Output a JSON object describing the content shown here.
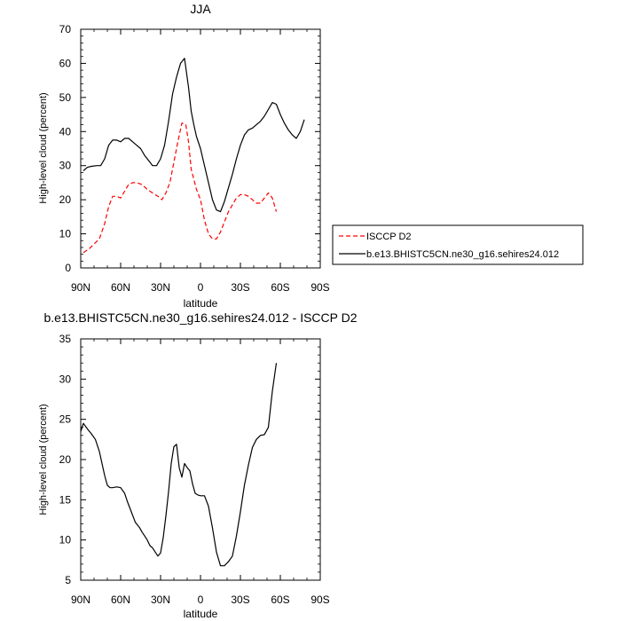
{
  "chart_data": [
    {
      "type": "line",
      "title": "JJA",
      "xlabel": "latitude",
      "ylabel": "High-level cloud (percent)",
      "xlim": [
        90,
        -90
      ],
      "ylim": [
        0,
        70
      ],
      "x_ticks": [
        90,
        60,
        30,
        0,
        -30,
        -60,
        -90
      ],
      "x_tick_labels": [
        "90N",
        "60N",
        "30N",
        "0",
        "30S",
        "60S",
        "90S"
      ],
      "y_ticks": [
        0,
        10,
        20,
        30,
        40,
        50,
        60,
        70
      ],
      "y_tick_labels": [
        "0",
        "10",
        "20",
        "30",
        "40",
        "50",
        "60",
        "70"
      ],
      "legend_position": "right",
      "series": [
        {
          "name": "ISCCP D2",
          "color": "#ff0000",
          "dash": "dashed",
          "x": [
            88,
            84,
            80,
            76,
            72,
            69,
            66,
            63,
            60,
            57,
            54,
            51,
            48,
            44,
            40,
            36,
            32,
            29,
            26,
            23,
            20,
            17,
            14,
            11,
            9,
            7,
            5,
            3,
            0,
            -3,
            -6,
            -9,
            -12,
            -15,
            -18,
            -21,
            -24,
            -27,
            -30,
            -33,
            -36,
            -39,
            -42,
            -45,
            -48,
            -51,
            -54,
            -57,
            -60,
            -63,
            -66
          ],
          "y": [
            4.5,
            5.5,
            7,
            8.5,
            13,
            18,
            21,
            21,
            20.5,
            22.5,
            24.5,
            25,
            25,
            24.5,
            23,
            22,
            21,
            20,
            22,
            25,
            31,
            37,
            42.5,
            42,
            37,
            29,
            26,
            23,
            20,
            14,
            10,
            8.5,
            8.5,
            10.5,
            13.5,
            16.5,
            18.5,
            20.5,
            21.5,
            21.5,
            21,
            20,
            19,
            19,
            20.5,
            22,
            20.5,
            16.5,
            null,
            null,
            null
          ]
        },
        {
          "name": "b.e13.BHISTC5CN.ne30_g16.sehires24.012",
          "color": "#000000",
          "dash": "solid",
          "x": [
            88,
            85,
            82,
            78,
            75,
            72,
            69,
            66,
            63,
            60,
            57,
            54,
            51,
            48,
            45,
            42,
            39,
            36,
            33,
            30,
            27,
            24,
            21,
            18,
            15,
            12,
            9,
            7,
            5,
            3,
            0,
            -3,
            -6,
            -9,
            -12,
            -15,
            -18,
            -21,
            -24,
            -27,
            -30,
            -33,
            -36,
            -39,
            -42,
            -45,
            -48,
            -51,
            -54,
            -57,
            -60,
            -63,
            -66,
            -69,
            -72,
            -75,
            -78,
            -81,
            -84,
            -87
          ],
          "y": [
            28.5,
            29.5,
            29.8,
            30,
            30,
            32,
            36,
            37.5,
            37.5,
            37,
            38,
            38,
            37,
            36,
            35,
            33,
            31.5,
            30,
            30,
            32,
            36,
            43,
            51,
            56,
            60,
            61.5,
            53,
            46,
            42,
            38.5,
            35,
            30,
            25,
            20,
            17,
            16.5,
            19.5,
            23.5,
            27.5,
            32,
            36,
            39,
            40.5,
            41,
            42,
            43,
            44.5,
            46.5,
            48.5,
            48,
            45,
            42.5,
            40.5,
            39,
            38,
            40,
            43.5,
            null,
            null,
            null
          ]
        }
      ]
    },
    {
      "type": "line",
      "title": "b.e13.BHISTC5CN.ne30_g16.sehires24.012 - ISCCP D2",
      "xlabel": "latitude",
      "ylabel": "High-level cloud (percent)",
      "xlim": [
        90,
        -90
      ],
      "ylim": [
        5,
        35
      ],
      "x_ticks": [
        90,
        60,
        30,
        0,
        -30,
        -60,
        -90
      ],
      "x_tick_labels": [
        "90N",
        "60N",
        "30N",
        "0",
        "30S",
        "60S",
        "90S"
      ],
      "y_ticks": [
        5,
        10,
        15,
        20,
        25,
        30,
        35
      ],
      "y_tick_labels": [
        "5",
        "10",
        "15",
        "20",
        "25",
        "30",
        "35"
      ],
      "series": [
        {
          "color": "#000000",
          "dash": "solid",
          "x": [
            90,
            88,
            85,
            82,
            79,
            76,
            74,
            72,
            70,
            68,
            66,
            63,
            60,
            57,
            55,
            52,
            49,
            46,
            44,
            42,
            40,
            38,
            36,
            34,
            32,
            30,
            28,
            26,
            24,
            22,
            20,
            18,
            16,
            14,
            12,
            10,
            8,
            6,
            4,
            2,
            0,
            -3,
            -6,
            -9,
            -12,
            -15,
            -18,
            -21,
            -24,
            -27,
            -30,
            -33,
            -36,
            -39,
            -42,
            -45,
            -48,
            -51,
            -54,
            -57,
            -60,
            -63,
            -64,
            -66
          ],
          "y": [
            23.5,
            24.5,
            23.8,
            23.2,
            22.5,
            21,
            19.5,
            18,
            16.8,
            16.5,
            16.5,
            16.6,
            16.5,
            15.8,
            14.8,
            13.5,
            12.2,
            11.6,
            11,
            10.5,
            10,
            9.3,
            9,
            8.5,
            8,
            8.4,
            10.3,
            13,
            16,
            19.5,
            21.6,
            21.9,
            19,
            17.8,
            19.5,
            19,
            18.6,
            17,
            15.8,
            15.6,
            15.5,
            15.5,
            14.2,
            11.5,
            8.5,
            6.8,
            6.8,
            7.3,
            8,
            10.5,
            13.5,
            16.8,
            19.3,
            21.5,
            22.5,
            23,
            23.1,
            24,
            28.5,
            32,
            null,
            null,
            null,
            null
          ]
        }
      ]
    }
  ]
}
